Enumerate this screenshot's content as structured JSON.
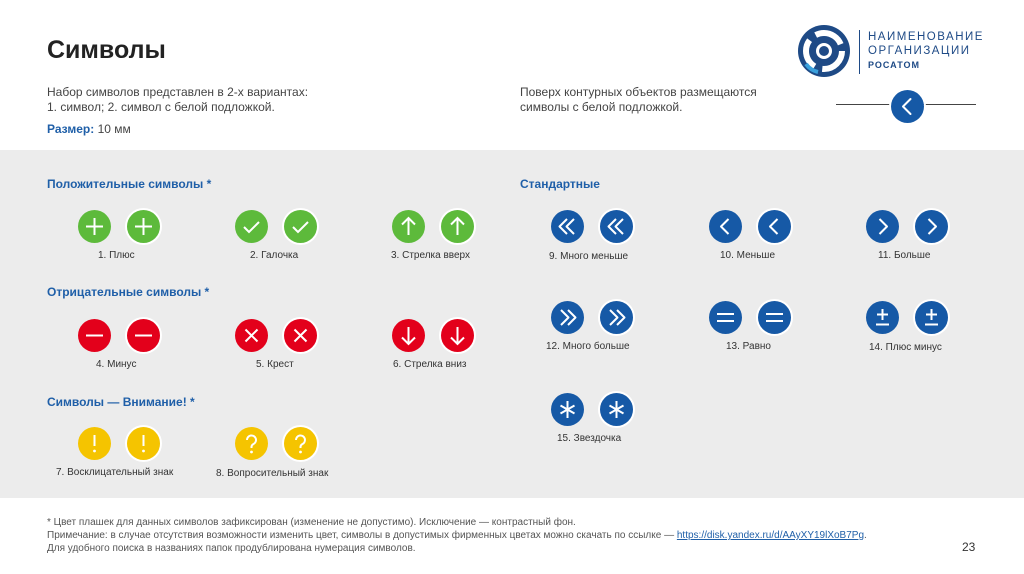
{
  "title": "Символы",
  "intro": {
    "line1": "Набор символов представлен в 2-х вариантах:",
    "line2": "1. символ; 2. символ с белой подложкой.",
    "size_label": "Размер:",
    "size_value": "10 мм"
  },
  "overlay_note": {
    "line1": "Поверх контурных объектов размещаются",
    "line2": "символы с белой подложкой."
  },
  "logo": {
    "line1": "НАИМЕНОВАНИЕ",
    "line2": "ОРГАНИЗАЦИИ",
    "line3": "РОСАТОМ"
  },
  "sections": {
    "positive": "Положительные символы *",
    "negative": "Отрицательные символы *",
    "attention": "Символы — Внимание! *",
    "standard": "Стандартные"
  },
  "labels": {
    "s1": "1. Плюс",
    "s2": "2. Галочка",
    "s3": "3. Стрелка вверх",
    "s4": "4. Минус",
    "s5": "5. Крест",
    "s6": "6. Стрелка вниз",
    "s7": "7. Восклицательный знак",
    "s8": "8. Вопросительный знак",
    "s9": "9. Много меньше",
    "s10": "10. Меньше",
    "s11": "11. Больше",
    "s12": "12. Много больше",
    "s13": "13. Равно",
    "s14": "14. Плюс минус",
    "s15": "15. Звездочка"
  },
  "colors": {
    "green": "#5dba3b",
    "red": "#e3001b",
    "yellow": "#f5c400",
    "blue": "#1659a6",
    "accent": "#1f5fa8",
    "panel": "#ececec"
  },
  "footer": {
    "line1": "* Цвет плашек для данных символов зафиксирован (изменение не допустимо). Исключение — контрастный фон.",
    "line2_prefix": "Примечание: в случае отсутствия возможности изменить цвет, символы в допустимых фирменных цветах можно скачать по ссылке — ",
    "link": "https://disk.yandex.ru/d/AAyXY19lXoB7Pg",
    "line2_suffix": ".",
    "line3": "Для удобного поиска в названиях папок продублирована нумерация символов."
  },
  "page_number": "23"
}
